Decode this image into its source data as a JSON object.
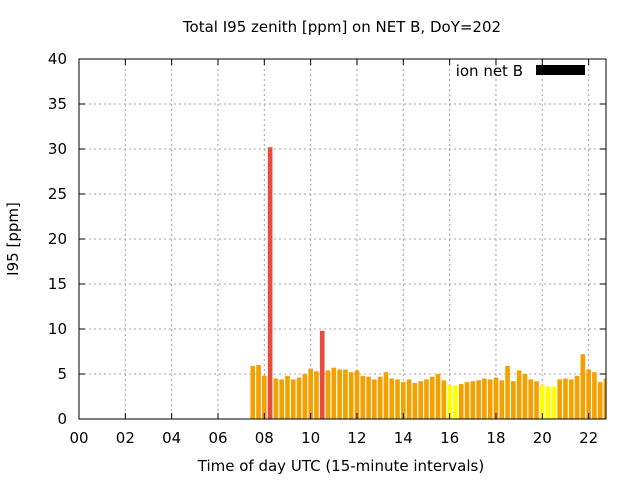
{
  "chart_data": {
    "type": "bar",
    "title": "Total I95 zenith [ppm] on NET B, DoY=202",
    "xlabel": "Time of day UTC (15-minute intervals)",
    "ylabel": "I95 [ppm]",
    "xlim": [
      0,
      22.75
    ],
    "ylim": [
      0,
      40
    ],
    "x_ticks": [
      "00",
      "02",
      "04",
      "06",
      "08",
      "10",
      "12",
      "14",
      "16",
      "18",
      "20",
      "22"
    ],
    "y_ticks": [
      "0",
      "5",
      "10",
      "15",
      "20",
      "25",
      "30",
      "35",
      "40"
    ],
    "grid": true,
    "legend": {
      "position": "top-right",
      "entries": [
        {
          "label": "ion net B",
          "color": "#000000"
        }
      ]
    },
    "bar_width_hours": 0.2,
    "colors": {
      "red": "#e84c3d",
      "orange": "#f4a100",
      "yellow": "#ffff00"
    },
    "series": [
      {
        "x": [
          7.5,
          7.75,
          8.0,
          8.25,
          8.5,
          8.75,
          9.0,
          9.25,
          9.5,
          9.75,
          10.0,
          10.25,
          10.5,
          10.75,
          11.0,
          11.25,
          11.5,
          11.75,
          12.0,
          12.25,
          12.5,
          12.75,
          13.0,
          13.25,
          13.5,
          13.75,
          14.0,
          14.25,
          14.5,
          14.75,
          15.0,
          15.25,
          15.5,
          15.75,
          16.0,
          16.25,
          16.5,
          16.75,
          17.0,
          17.25,
          17.5,
          17.75,
          18.0,
          18.25,
          18.5,
          18.75,
          19.0,
          19.25,
          19.5,
          19.75,
          20.0,
          20.25,
          20.5,
          20.75,
          21.0,
          21.25,
          21.5,
          21.75,
          22.0,
          22.25,
          22.5,
          22.75
        ],
        "values": [
          5.9,
          6.0,
          4.8,
          30.2,
          4.5,
          4.4,
          4.8,
          4.4,
          4.6,
          5.0,
          5.6,
          5.3,
          9.8,
          5.4,
          5.7,
          5.5,
          5.5,
          5.2,
          5.4,
          4.8,
          4.7,
          4.4,
          4.7,
          5.2,
          4.5,
          4.4,
          4.1,
          4.4,
          4.0,
          4.2,
          4.4,
          4.7,
          5.0,
          4.3,
          3.8,
          3.7,
          3.9,
          4.1,
          4.2,
          4.3,
          4.5,
          4.4,
          4.6,
          4.3,
          5.9,
          4.2,
          5.4,
          5.0,
          4.4,
          4.2,
          3.8,
          3.6,
          3.6,
          4.4,
          4.5,
          4.4,
          4.8,
          7.2,
          5.5,
          5.2,
          4.1,
          4.5
        ],
        "colors": [
          "orange",
          "orange",
          "orange",
          "red",
          "orange",
          "orange",
          "orange",
          "orange",
          "orange",
          "orange",
          "orange",
          "orange",
          "red",
          "orange",
          "orange",
          "orange",
          "orange",
          "orange",
          "orange",
          "orange",
          "orange",
          "orange",
          "orange",
          "orange",
          "orange",
          "orange",
          "orange",
          "orange",
          "orange",
          "orange",
          "orange",
          "orange",
          "orange",
          "orange",
          "yellow",
          "yellow",
          "orange",
          "orange",
          "orange",
          "orange",
          "orange",
          "orange",
          "orange",
          "orange",
          "orange",
          "orange",
          "orange",
          "orange",
          "orange",
          "orange",
          "yellow",
          "yellow",
          "yellow",
          "orange",
          "orange",
          "orange",
          "orange",
          "orange",
          "orange",
          "orange",
          "orange",
          "orange"
        ]
      }
    ]
  }
}
